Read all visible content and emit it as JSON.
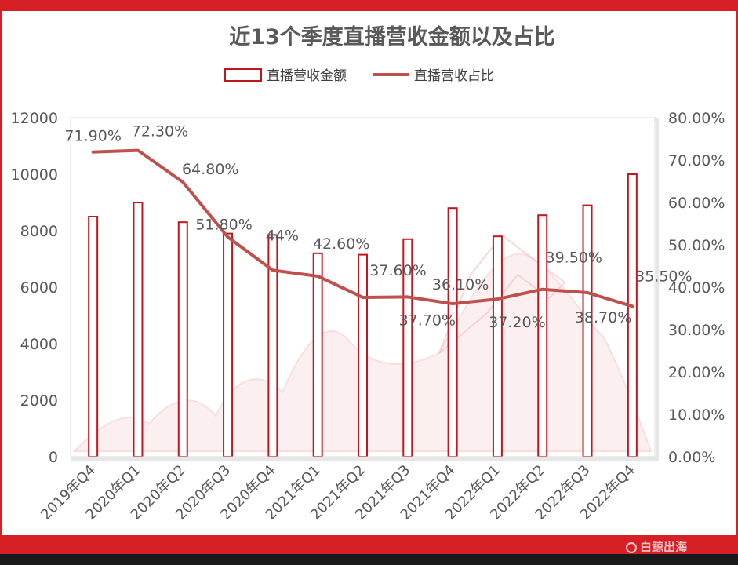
{
  "chart_data": {
    "type": "bar",
    "title": "近13个季度直播营收金额以及占比",
    "legend": {
      "placement": "top",
      "items": [
        "直播营收金额",
        "直播营收占比"
      ]
    },
    "categories": [
      "2019年Q4",
      "2020年Q1",
      "2020年Q2",
      "2020年Q3",
      "2020年Q4",
      "2021年Q1",
      "2021年Q2",
      "2021年Q3",
      "2021年Q4",
      "2022年Q1",
      "2022年Q2",
      "2022年Q3",
      "2022年Q4"
    ],
    "series": [
      {
        "name": "直播营收金额",
        "type": "bar",
        "axis": "left",
        "color": "#c0171e",
        "values": [
          8500,
          9000,
          8300,
          7900,
          7850,
          7200,
          7150,
          7700,
          8800,
          7800,
          8550,
          8900,
          10000
        ]
      },
      {
        "name": "直播营收占比",
        "type": "line",
        "axis": "right",
        "color": "#c0504d",
        "values": [
          71.9,
          72.3,
          64.8,
          51.8,
          44.0,
          42.6,
          37.6,
          37.7,
          36.1,
          37.2,
          39.5,
          38.7,
          35.5
        ],
        "labels": [
          "71.90%",
          "72.30%",
          "64.80%",
          "51.80%",
          "44%",
          "42.60%",
          "37.60%",
          "37.70%",
          "36.10%",
          "37.20%",
          "39.50%",
          "38.70%",
          "35.50%"
        ]
      }
    ],
    "y_left": {
      "min": 0,
      "max": 12000,
      "ticks": [
        "0",
        "2000",
        "4000",
        "6000",
        "8000",
        "10000",
        "12000"
      ]
    },
    "y_right": {
      "min": 0,
      "max": 80,
      "ticks": [
        "0.00%",
        "10.00%",
        "20.00%",
        "30.00%",
        "40.00%",
        "50.00%",
        "60.00%",
        "70.00%",
        "80.00%"
      ]
    },
    "grid": false
  },
  "watermark": "白鲸出海"
}
